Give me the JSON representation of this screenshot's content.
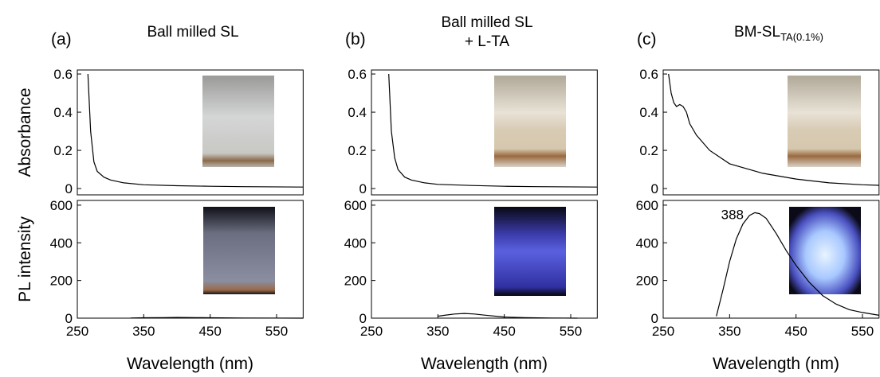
{
  "chart_data": [
    {
      "type": "line",
      "panel_label": "(a)",
      "title_lines": [
        "Ball milled SL"
      ],
      "ylabel": "Absorbance",
      "color": "#000000",
      "x": [
        266,
        270,
        275,
        280,
        290,
        300,
        320,
        350,
        400,
        450,
        500,
        590
      ],
      "values": [
        0.6,
        0.3,
        0.14,
        0.09,
        0.06,
        0.045,
        0.03,
        0.02,
        0.015,
        0.012,
        0.01,
        0.008
      ],
      "xlim": [
        250,
        590
      ],
      "ylim": [
        -0.033,
        0.621
      ],
      "yticks": [
        0,
        0.2,
        0.4,
        0.6
      ]
    },
    {
      "type": "line",
      "ylabel": "PL intensity",
      "xlabel": "Wavelength (nm)",
      "color": "#000000",
      "x": [
        330,
        350,
        380,
        400,
        430,
        450,
        500,
        590
      ],
      "values": [
        1,
        2,
        3,
        4,
        3,
        2,
        1,
        0
      ],
      "xlim": [
        250,
        590
      ],
      "ylim": [
        0,
        625
      ],
      "yticks": [
        0,
        200,
        400,
        600
      ],
      "xticks": [
        250,
        350,
        450,
        550
      ]
    },
    {
      "type": "line",
      "panel_label": "(b)",
      "title_lines": [
        "Ball milled SL",
        "+ L-TA"
      ],
      "color": "#000000",
      "x": [
        276,
        280,
        285,
        290,
        300,
        310,
        330,
        350,
        400,
        450,
        500,
        590
      ],
      "values": [
        0.6,
        0.3,
        0.16,
        0.1,
        0.06,
        0.045,
        0.03,
        0.022,
        0.016,
        0.012,
        0.01,
        0.008
      ],
      "xlim": [
        250,
        590
      ],
      "ylim": [
        -0.033,
        0.621
      ],
      "yticks": [
        0,
        0.2,
        0.4,
        0.6
      ]
    },
    {
      "type": "line",
      "xlabel": "Wavelength (nm)",
      "color": "#000000",
      "x": [
        350,
        360,
        375,
        390,
        405,
        420,
        450,
        480,
        520,
        560
      ],
      "values": [
        10,
        15,
        22,
        25,
        22,
        16,
        6,
        3,
        1,
        0
      ],
      "xlim": [
        250,
        590
      ],
      "ylim": [
        0,
        625
      ],
      "yticks": [
        0,
        200,
        400,
        600
      ],
      "xticks": [
        250,
        350,
        450,
        550
      ]
    },
    {
      "type": "line",
      "panel_label": "(c)",
      "title_lines": [
        "BM-SL"
      ],
      "title_subscript": "TA(0.1%)",
      "color": "#000000",
      "x": [
        258,
        262,
        266,
        270,
        275,
        280,
        285,
        290,
        300,
        320,
        350,
        400,
        450,
        500,
        550,
        575
      ],
      "values": [
        0.6,
        0.5,
        0.45,
        0.43,
        0.44,
        0.43,
        0.4,
        0.34,
        0.28,
        0.2,
        0.13,
        0.08,
        0.05,
        0.03,
        0.02,
        0.017
      ],
      "xlim": [
        250,
        575
      ],
      "ylim": [
        -0.033,
        0.621
      ],
      "yticks": [
        0,
        0.2,
        0.4,
        0.6
      ]
    },
    {
      "type": "line",
      "xlabel": "Wavelength (nm)",
      "color": "#000000",
      "x": [
        330,
        340,
        350,
        360,
        370,
        380,
        388,
        395,
        405,
        420,
        435,
        450,
        470,
        490,
        510,
        530,
        550,
        575
      ],
      "values": [
        10,
        150,
        300,
        420,
        500,
        545,
        560,
        555,
        530,
        450,
        360,
        280,
        190,
        120,
        75,
        45,
        30,
        15
      ],
      "xlim": [
        250,
        575
      ],
      "ylim": [
        0,
        625
      ],
      "yticks": [
        0,
        200,
        400,
        600
      ],
      "xticks": [
        250,
        350,
        450,
        550
      ],
      "annotations": [
        {
          "text": "388",
          "x": 388
        }
      ]
    }
  ]
}
